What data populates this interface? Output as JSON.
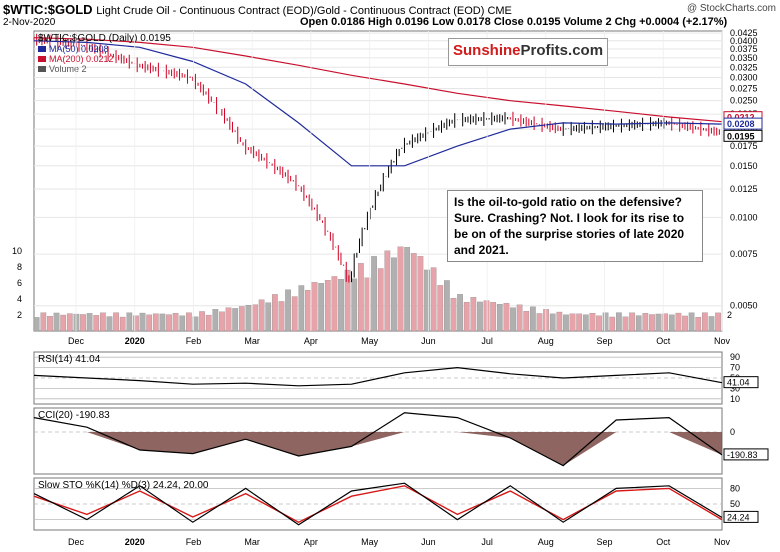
{
  "header": {
    "symbol": "$WTIC:$GOLD",
    "description": "Light Crude Oil - Continuous Contract (EOD)/Gold - Continuous Contract (EOD)  CME",
    "copyright": "@ StockCharts.com",
    "date": "2-Nov-2020",
    "ohlc": "Open 0.0186  High 0.0196  Low 0.0178  Close 0.0195  Volume 2  Chg +0.0004 (+2.17%)"
  },
  "logo": {
    "part1": "Sunshine",
    "part2": "Profits.com"
  },
  "annotation": "Is the oil-to-gold ratio on the defensive? Sure. Crashing? Not. I look for its rise to be on of the surprise stories of late 2020 and 2021.",
  "colors": {
    "price_up": "#000000",
    "price_down": "#cc0022",
    "ma50": "#1f2a9a",
    "ma200": "#c8102e",
    "vol_up": "#b0b0b0",
    "vol_down": "#e6a3aa",
    "neg_fill": "#7a4a44",
    "stoch_d": "#d81818"
  },
  "chart_data": [
    {
      "type": "line",
      "title": "$WTIC:$GOLD (Daily) 0.0195",
      "legend": [
        "MA(50) 0.0208",
        "MA(200) 0.0212",
        "Volume 2"
      ],
      "x_ticks": [
        "Dec",
        "2020",
        "Feb",
        "Mar",
        "Apr",
        "May",
        "Jun",
        "Jul",
        "Aug",
        "Sep",
        "Oct",
        "Nov"
      ],
      "y_ticks": [
        "0.0425",
        "0.0400",
        "0.0375",
        "0.0350",
        "0.0325",
        "0.0300",
        "0.0275",
        "0.0250",
        "0.0225",
        "0.0200",
        "0.0175",
        "0.0150",
        "0.0125",
        "0.0100",
        "0.0075",
        "0.0050"
      ],
      "last_labels": [
        "0.0212",
        "0.0208",
        "0.0195"
      ],
      "scale": "log",
      "ylim": [
        0.0041,
        0.0432
      ],
      "x": [
        0,
        20,
        40,
        60,
        80,
        100,
        120,
        140,
        160,
        180,
        200,
        220,
        240,
        260
      ],
      "series": [
        {
          "name": "$WTIC:$GOLD",
          "values": [
            0.0405,
            0.0385,
            0.033,
            0.03,
            0.0175,
            0.013,
            0.006,
            0.0175,
            0.0215,
            0.0218,
            0.02,
            0.0205,
            0.021,
            0.0195
          ]
        },
        {
          "name": "MA(50)",
          "values": [
            0.04,
            0.0395,
            0.038,
            0.034,
            0.0285,
            0.021,
            0.015,
            0.015,
            0.0175,
            0.02,
            0.021,
            0.0208,
            0.021,
            0.0208
          ]
        },
        {
          "name": "MA(200)",
          "values": [
            0.041,
            0.0405,
            0.0395,
            0.038,
            0.0355,
            0.033,
            0.0305,
            0.0285,
            0.0265,
            0.025,
            0.024,
            0.023,
            0.022,
            0.0212
          ]
        }
      ],
      "volume": {
        "values": [
          2,
          2,
          2,
          2,
          3,
          5,
          7,
          10,
          4,
          3,
          2,
          2,
          2,
          2
        ],
        "y_ticks": [
          "10",
          "8",
          "6",
          "4",
          "2"
        ],
        "last": "2"
      }
    },
    {
      "type": "line",
      "title": "RSI(14) 41.04",
      "y_ticks": [
        "90",
        "70",
        "50",
        "30",
        "10"
      ],
      "ylim": [
        0,
        100
      ],
      "last_label": "41.04",
      "x": [
        0,
        20,
        40,
        60,
        80,
        100,
        120,
        140,
        160,
        180,
        200,
        220,
        240,
        260
      ],
      "values": [
        55,
        50,
        45,
        38,
        40,
        35,
        38,
        60,
        70,
        58,
        50,
        55,
        60,
        41
      ]
    },
    {
      "type": "area",
      "title": "CCI(20) -190.83",
      "y_ticks": [
        "0",
        "-190.83"
      ],
      "ylim": [
        -350,
        200
      ],
      "last_label": "-190.83",
      "x": [
        0,
        20,
        40,
        60,
        80,
        100,
        120,
        140,
        160,
        180,
        200,
        220,
        240,
        260
      ],
      "values": [
        120,
        40,
        -150,
        -180,
        -60,
        -200,
        -120,
        160,
        120,
        -50,
        -280,
        100,
        120,
        -191
      ]
    },
    {
      "type": "line",
      "title": "Slow STO %K(14) %D(3) 24.24, 20.00",
      "y_ticks": [
        "80",
        "50",
        "20"
      ],
      "ylim": [
        0,
        100
      ],
      "last_label": "24.24",
      "x": [
        0,
        20,
        40,
        60,
        80,
        100,
        120,
        140,
        160,
        180,
        200,
        220,
        240,
        260
      ],
      "series": [
        {
          "name": "%K",
          "values": [
            70,
            20,
            85,
            15,
            80,
            10,
            75,
            90,
            20,
            85,
            15,
            80,
            85,
            24
          ]
        },
        {
          "name": "%D",
          "values": [
            65,
            30,
            75,
            25,
            70,
            15,
            65,
            85,
            30,
            75,
            20,
            75,
            80,
            20
          ]
        }
      ]
    }
  ]
}
